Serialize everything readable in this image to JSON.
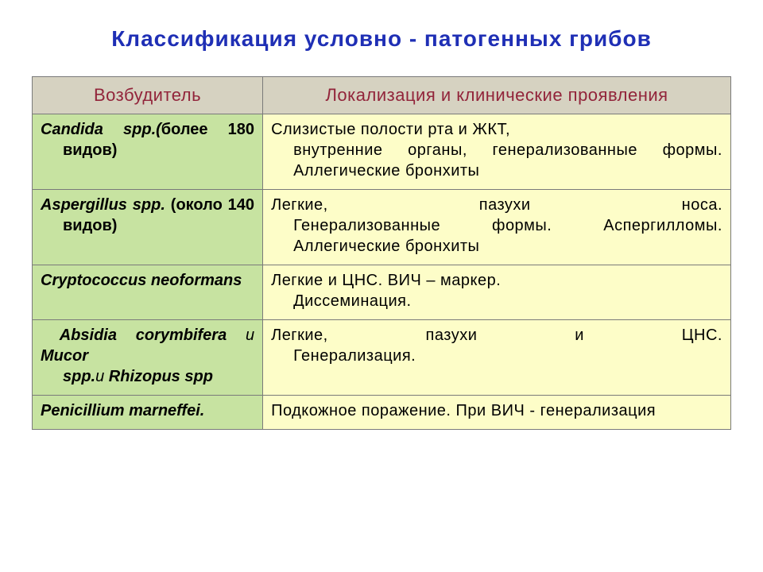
{
  "title": "Классификация условно - патогенных грибов",
  "title_color": "#1f2fb5",
  "title_fontsize": 28,
  "table": {
    "header_bg": "#d6d2c1",
    "col1_bg": "#c7e3a1",
    "col2_bg": "#fdfdc8",
    "border_color": "#7a7a7a",
    "header_text_color": "#92243a",
    "body_text_color": "#000000",
    "header_fontsize": 22,
    "body_fontsize": 20,
    "columns": [
      "Возбудитель",
      "Локализация и клинические проявления"
    ],
    "rows": [
      {
        "pathogen_italic": "Candida spp.(",
        "pathogen_extra_line1": "более 180",
        "pathogen_line2": "видов)",
        "clin_line1": "Слизистые полости рта и ЖКТ,",
        "clin_line2": "внутренние органы, генерализованные формы. Аллегические бронхиты"
      },
      {
        "pathogen_italic": "Aspergillus spp. ",
        "pathogen_extra_line1": "(около 140",
        "pathogen_line2": "видов)",
        "clin_one_line": "Легкие, пазухи носа.",
        "clin_line2": "Генерализованные формы. Аспергилломы. Аллегические бронхиты"
      },
      {
        "pathogen_italic": "Cryptococcus neoformans",
        "clin_line1": "Легкие и ЦНС. ВИЧ – маркер.",
        "clin_line2": "Диссеминация."
      },
      {
        "pathogen_html": "&nbsp;Absidia corymbifera <span style=\"font-style:italic;font-weight:normal\">и</span> Mucor<span class=\"line2\">spp.<span style=\"font-style:italic;font-weight:normal\">и</span> Rhizopus spp</span>",
        "clin_one_line": "Легкие, пазухи и ЦНС.",
        "clin_line2": "Генерализация."
      },
      {
        "pathogen_italic": "Penicillium marneffei.",
        "clin_text": "Подкожное поражение. При ВИЧ - генерализация"
      }
    ]
  }
}
